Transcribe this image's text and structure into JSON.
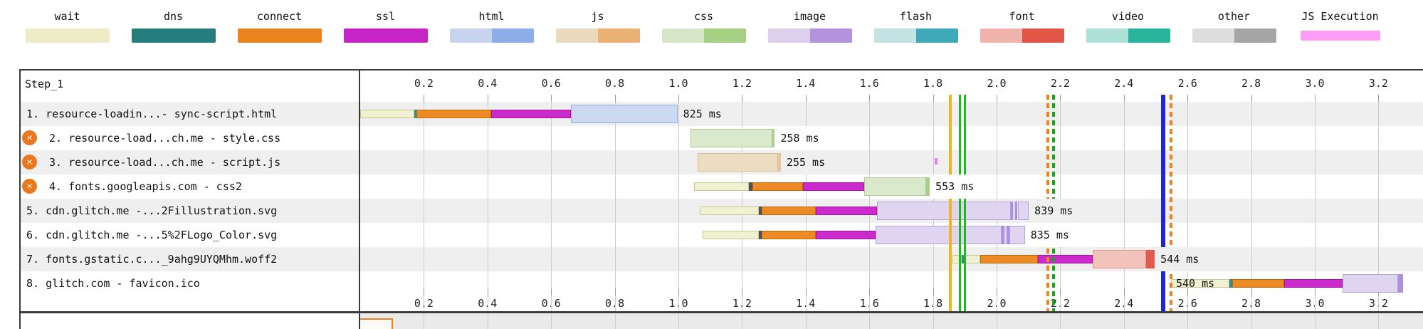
{
  "legend": {
    "items": [
      {
        "label": "wait",
        "light": "#ECECC6",
        "dark": null
      },
      {
        "label": "dns",
        "light": "#267D7D",
        "dark": null
      },
      {
        "label": "connect",
        "light": "#E8831D",
        "dark": null
      },
      {
        "label": "ssl",
        "light": "#C724C7",
        "dark": null
      },
      {
        "label": "html",
        "light": "#C8D4EE",
        "dark": "#8CADE8"
      },
      {
        "label": "js",
        "light": "#EBD9BD",
        "dark": "#E9B173"
      },
      {
        "label": "css",
        "light": "#D6E7C7",
        "dark": "#A5D084"
      },
      {
        "label": "image",
        "light": "#DCD0EC",
        "dark": "#B293DC"
      },
      {
        "label": "flash",
        "light": "#C2E2E4",
        "dark": "#3FA9BA"
      },
      {
        "label": "font",
        "light": "#F0B4AC",
        "dark": "#E25647"
      },
      {
        "label": "video",
        "light": "#AEE0D7",
        "dark": "#27B69B"
      },
      {
        "label": "other",
        "light": "#DDDDDD",
        "dark": "#A5A5A5"
      },
      {
        "label": "JS Execution",
        "light": "#FF9EF9",
        "dark": null,
        "thin": true
      }
    ]
  },
  "palette": {
    "wait": {
      "fill": "#F0F0D2",
      "border": "#C8C893",
      "h": "thin"
    },
    "dns": {
      "fill": "#2E8F8F",
      "h": "thin"
    },
    "dns_gray": {
      "fill": "#525252",
      "h": "thin"
    },
    "connect": {
      "fill": "#EC8A25",
      "border": "#C06A10",
      "h": "thin"
    },
    "ssl": {
      "fill": "#CC2BCC",
      "border": "#A414A4",
      "h": "thin"
    },
    "html": {
      "fill": "#CDD9F0",
      "border": "#97ACDC",
      "h": "tall"
    },
    "js": {
      "fill": "#EBDCC2",
      "border": "#D9C09A",
      "h": "tall"
    },
    "js_dark": {
      "fill": "#E5C79E",
      "h": "tall"
    },
    "css": {
      "fill": "#DAE9CC",
      "border": "#AECC92",
      "h": "tall"
    },
    "css_dark": {
      "fill": "#A8D089",
      "h": "tall"
    },
    "image": {
      "fill": "#DFD5F0",
      "border": "#B4A2DB",
      "h": "tall"
    },
    "image_dark": {
      "fill": "#AC92DC",
      "h": "tall"
    },
    "font": {
      "fill": "#F2C2BB",
      "border": "#DC9A91",
      "h": "tall"
    },
    "font_dark": {
      "fill": "#E15A4B",
      "h": "tall"
    },
    "jsexec": {
      "fill": "#F080F0",
      "h": "tick"
    }
  },
  "row_band_colors": {
    "odd": "#EFEFEF",
    "even": "#FFFFFF"
  },
  "chart_data": {
    "type": "waterfall",
    "title": "Step_1",
    "time_unit": "seconds",
    "axis_ticks": [
      "0.2",
      "0.4",
      "0.6",
      "0.8",
      "1.0",
      "1.2",
      "1.4",
      "1.6",
      "1.8",
      "2.0",
      "2.2",
      "2.4",
      "2.6",
      "2.8",
      "3.0",
      "3.2"
    ],
    "tick_interval": 0.2,
    "axis_range": [
      0,
      3.34
    ],
    "requests": [
      {
        "num": 1,
        "label": "1. resource-loadin...- sync-script.html",
        "error": false,
        "duration_label": "825 ms",
        "segments": [
          {
            "type": "wait",
            "t0": 0,
            "t1": 0.169
          },
          {
            "type": "dns",
            "t0": 0.169,
            "t1": 0.177
          },
          {
            "type": "connect",
            "t0": 0.177,
            "t1": 0.412
          },
          {
            "type": "ssl",
            "t0": 0.412,
            "t1": 0.662
          },
          {
            "type": "html",
            "t0": 0.662,
            "t1": 0.997
          }
        ]
      },
      {
        "num": 2,
        "label": "2. resource-load...ch.me - style.css",
        "error": true,
        "duration_label": "258 ms",
        "segments": [
          {
            "type": "css",
            "t0": 1.037,
            "t1": 1.295
          },
          {
            "type": "css_dark",
            "t0": 1.295,
            "t1": 1.303
          }
        ]
      },
      {
        "num": 3,
        "label": "3. resource-load...ch.me - script.js",
        "error": true,
        "duration_label": "255 ms",
        "segments": [
          {
            "type": "js",
            "t0": 1.06,
            "t1": 1.314
          },
          {
            "type": "js_dark",
            "t0": 1.314,
            "t1": 1.322
          }
        ]
      },
      {
        "num": 4,
        "label": "4. fonts.googleapis.com - css2",
        "error": true,
        "duration_label": "553 ms",
        "segments": [
          {
            "type": "wait",
            "t0": 1.049,
            "t1": 1.221
          },
          {
            "type": "dns_gray",
            "t0": 1.221,
            "t1": 1.232
          },
          {
            "type": "connect",
            "t0": 1.232,
            "t1": 1.392
          },
          {
            "type": "ssl",
            "t0": 1.392,
            "t1": 1.583
          },
          {
            "type": "css",
            "t0": 1.583,
            "t1": 1.779
          },
          {
            "type": "css_dark",
            "t0": 1.779,
            "t1": 1.79
          }
        ]
      },
      {
        "num": 5,
        "label": "5. cdn.glitch.me -...2Fillustration.svg",
        "error": false,
        "duration_label": "839 ms",
        "segments": [
          {
            "type": "wait",
            "t0": 1.068,
            "t1": 1.253
          },
          {
            "type": "dns_gray",
            "t0": 1.253,
            "t1": 1.261
          },
          {
            "type": "connect",
            "t0": 1.261,
            "t1": 1.431
          },
          {
            "type": "ssl",
            "t0": 1.431,
            "t1": 1.624
          },
          {
            "type": "image",
            "t0": 1.624,
            "t1": 2.044
          },
          {
            "type": "image_dark",
            "t0": 2.044,
            "t1": 2.052
          },
          {
            "type": "image",
            "t0": 2.052,
            "t1": 2.058
          },
          {
            "type": "image_dark",
            "t0": 2.058,
            "t1": 2.066
          },
          {
            "type": "image",
            "t0": 2.066,
            "t1": 2.101
          }
        ]
      },
      {
        "num": 6,
        "label": "6. cdn.glitch.me -...5%2FLogo_Color.svg",
        "error": false,
        "duration_label": "835 ms",
        "segments": [
          {
            "type": "wait",
            "t0": 1.076,
            "t1": 1.253
          },
          {
            "type": "dns_gray",
            "t0": 1.253,
            "t1": 1.261
          },
          {
            "type": "connect",
            "t0": 1.261,
            "t1": 1.431
          },
          {
            "type": "ssl",
            "t0": 1.431,
            "t1": 1.62
          },
          {
            "type": "image",
            "t0": 1.62,
            "t1": 2.016
          },
          {
            "type": "image_dark",
            "t0": 2.016,
            "t1": 2.024
          },
          {
            "type": "image",
            "t0": 2.024,
            "t1": 2.032
          },
          {
            "type": "image_dark",
            "t0": 2.032,
            "t1": 2.04
          },
          {
            "type": "image",
            "t0": 2.04,
            "t1": 2.089
          }
        ]
      },
      {
        "num": 7,
        "label": "7. fonts.gstatic.c..._9ahg9UYQMhm.woff2",
        "error": false,
        "duration_label": "544 ms",
        "segments": [
          {
            "type": "wait",
            "t0": 1.861,
            "t1": 1.89
          },
          {
            "type": "dns",
            "t0": 1.89,
            "t1": 1.897
          },
          {
            "type": "wait",
            "t0": 1.897,
            "t1": 1.948
          },
          {
            "type": "connect",
            "t0": 1.948,
            "t1": 2.129
          },
          {
            "type": "ssl",
            "t0": 2.129,
            "t1": 2.301
          },
          {
            "type": "font",
            "t0": 2.301,
            "t1": 2.47
          },
          {
            "type": "font_dark",
            "t0": 2.47,
            "t1": 2.497
          }
        ]
      },
      {
        "num": 8,
        "label": "8. glitch.com - favicon.ico",
        "error": false,
        "duration_label": "540 ms",
        "label_over_start": true,
        "segments": [
          {
            "type": "wait",
            "t0": 2.548,
            "t1": 2.732
          },
          {
            "type": "dns",
            "t0": 2.732,
            "t1": 2.74
          },
          {
            "type": "connect",
            "t0": 2.74,
            "t1": 2.903
          },
          {
            "type": "ssl",
            "t0": 2.903,
            "t1": 3.088
          },
          {
            "type": "image",
            "t0": 3.088,
            "t1": 3.262
          },
          {
            "type": "image_dark",
            "t0": 3.262,
            "t1": 3.278
          }
        ]
      }
    ],
    "markers": [
      {
        "name": "first-paint-line",
        "t": 1.855,
        "color": "#F5B519",
        "style": "solid",
        "w": 4
      },
      {
        "name": "start-render-line",
        "t": 1.884,
        "color": "#23B423",
        "style": "solid",
        "w": 3
      },
      {
        "name": "start-render-line-2",
        "t": 1.901,
        "color": "#23B423",
        "style": "solid",
        "w": 3
      },
      {
        "name": "dom-interactive-line",
        "t": 2.161,
        "color": "#EF8123",
        "style": "dashed",
        "w": 4
      },
      {
        "name": "dom-content-loaded-line",
        "t": 2.179,
        "color": "#1EA21E",
        "style": "dashed",
        "w": 4
      },
      {
        "name": "document-complete-line",
        "t": 2.524,
        "color": "#2121E0",
        "style": "solid",
        "w": 6
      },
      {
        "name": "load-event-line",
        "t": 2.548,
        "color": "#EF8123",
        "style": "dashed",
        "w": 4
      }
    ],
    "js_execution": [
      {
        "request": 3,
        "t0": 1.806,
        "t1": 1.815
      }
    ],
    "next_section": {
      "row_color": "#EAEAEA",
      "pending_request": {
        "t0": 0,
        "t1": 0.098,
        "outline": "#E8821F",
        "fill": "#FAFAF6"
      }
    }
  },
  "icons": {
    "error_glyph": "✕"
  }
}
